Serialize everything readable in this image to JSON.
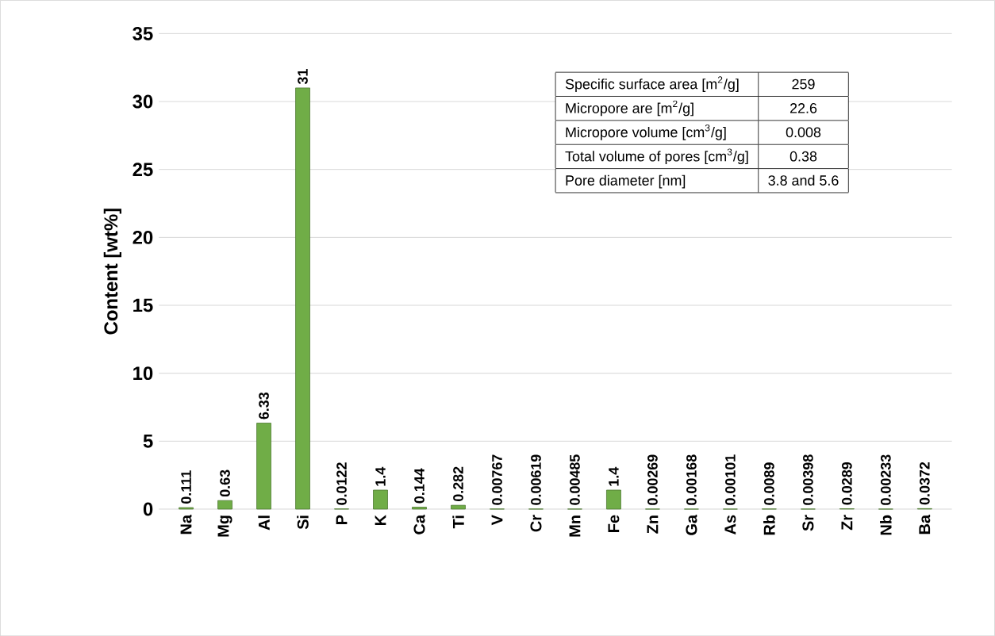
{
  "chart_data": {
    "type": "bar",
    "ylabel": "Content [wt%]",
    "categories": [
      "Na",
      "Mg",
      "Al",
      "Si",
      "P",
      "K",
      "Ca",
      "Ti",
      "V",
      "Cr",
      "Mn",
      "Fe",
      "Zn",
      "Ga",
      "As",
      "Rb",
      "Sr",
      "Zr",
      "Nb",
      "Ba"
    ],
    "values": [
      0.111,
      0.63,
      6.33,
      31,
      0.0122,
      1.4,
      0.144,
      0.282,
      0.00767,
      0.00619,
      0.00485,
      1.4,
      0.00269,
      0.00168,
      0.00101,
      0.0089,
      0.00398,
      0.0289,
      0.00233,
      0.0372
    ],
    "color": "#70ad47",
    "ylim": [
      0,
      35
    ],
    "yticks": [
      0,
      5,
      10,
      15,
      20,
      25,
      30,
      35
    ],
    "grid": "y",
    "data_labels": true,
    "annotations": [
      "Specific surface area [m$^{2}$/g]",
      "259",
      "Micropore are  [m$^{2}$/g]",
      "22.6",
      "Micropore volume [cm$^{3}$/g]",
      "0.008",
      "Total volume of pores [cm$^{3}$/g]",
      "0.38",
      "Pore diameter [nm]",
      "3.8 and 5.6"
    ]
  }
}
